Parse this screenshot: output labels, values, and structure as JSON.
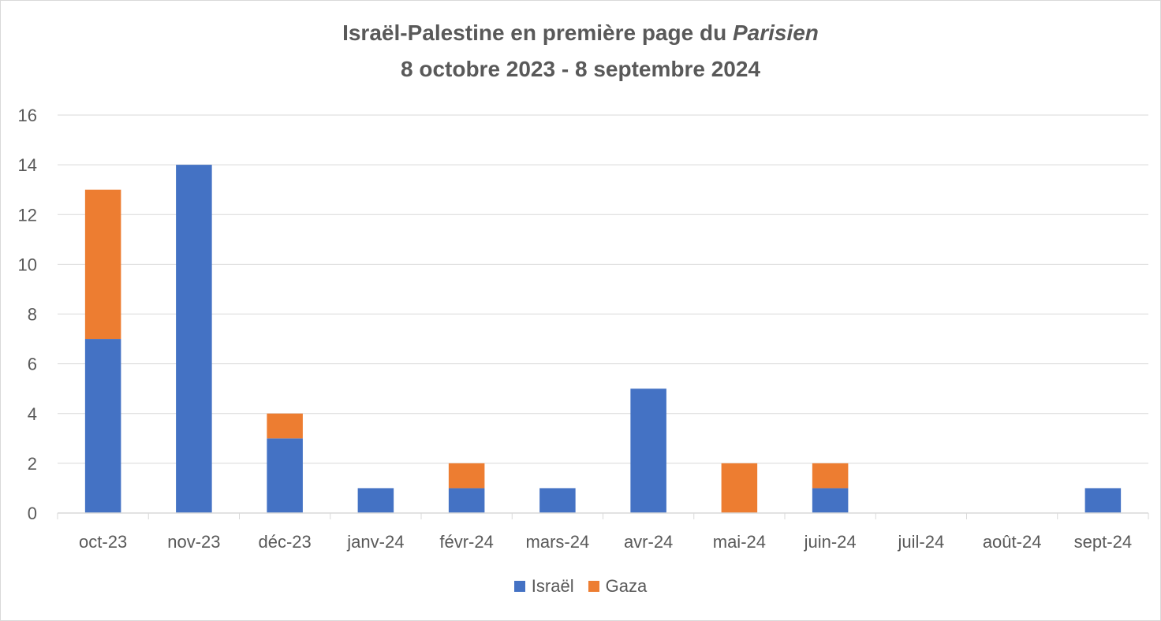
{
  "chart_data": {
    "type": "bar",
    "stacked": true,
    "title_main": "Israël-Palestine en première page du ",
    "title_italic": "Parisien",
    "subtitle": "8 octobre 2023 - 8 septembre 2024",
    "categories": [
      "oct-23",
      "nov-23",
      "déc-23",
      "janv-24",
      "févr-24",
      "mars-24",
      "avr-24",
      "mai-24",
      "juin-24",
      "juil-24",
      "août-24",
      "sept-24"
    ],
    "series": [
      {
        "name": "Israël",
        "color": "#4472c4",
        "values": [
          7,
          14,
          3,
          1,
          1,
          1,
          5,
          0,
          1,
          0,
          0,
          1
        ]
      },
      {
        "name": "Gaza",
        "color": "#ed7d31",
        "values": [
          6,
          0,
          1,
          0,
          1,
          0,
          0,
          2,
          1,
          0,
          0,
          0
        ]
      }
    ],
    "ylim": [
      0,
      16
    ],
    "yticks": [
      0,
      2,
      4,
      6,
      8,
      10,
      12,
      14,
      16
    ],
    "grid": true,
    "legend_position": "bottom"
  }
}
